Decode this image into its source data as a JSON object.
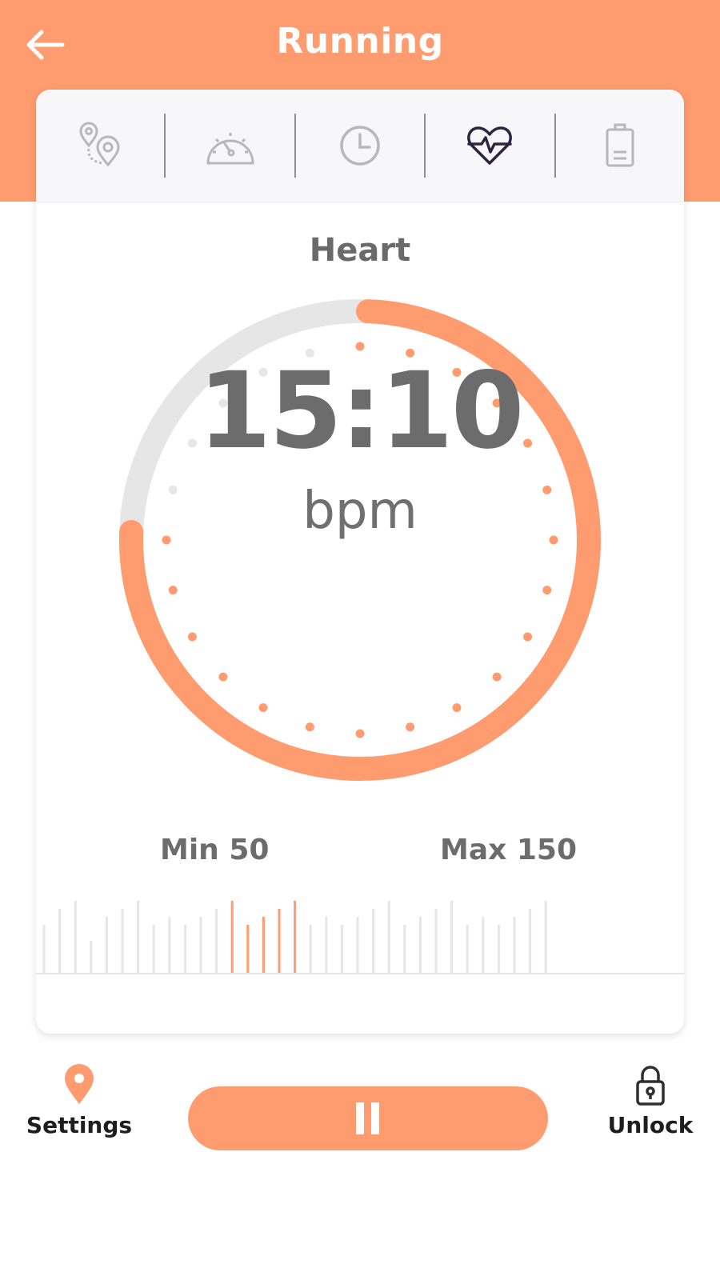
{
  "header": {
    "title": "Running",
    "back_icon": "arrow-left-icon"
  },
  "tabs": [
    {
      "icon": "route-pins-icon",
      "active": false
    },
    {
      "icon": "speedometer-icon",
      "active": false
    },
    {
      "icon": "clock-icon",
      "active": false
    },
    {
      "icon": "heart-pulse-icon",
      "active": true
    },
    {
      "icon": "battery-icon",
      "active": false
    }
  ],
  "main": {
    "section_title": "Heart",
    "value": "15:10",
    "unit": "bpm",
    "progress": 0.75,
    "min_label": "Min 50",
    "max_label": "Max 150"
  },
  "bottom": {
    "settings_label": "Settings",
    "settings_icon": "location-pin-icon",
    "pause_icon": "pause-icon",
    "unlock_label": "Unlock",
    "unlock_icon": "padlock-icon"
  },
  "colors": {
    "accent": "#ff9c6f",
    "track": "#e6e6e6",
    "icon_inactive": "#b8b8b8",
    "icon_active": "#2b2540",
    "text": "#6c6c6c"
  }
}
